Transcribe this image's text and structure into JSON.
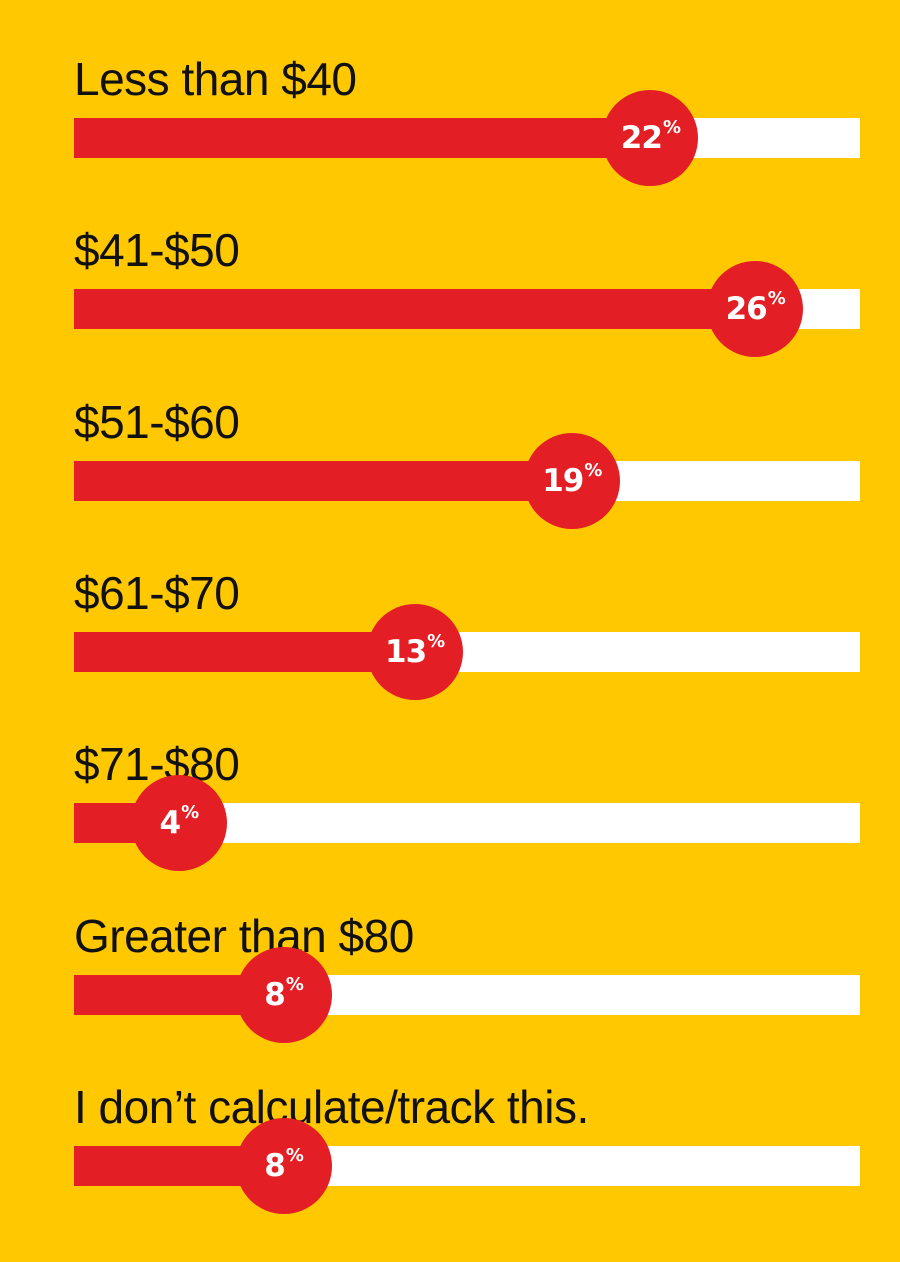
{
  "colors": {
    "background": "#FFC800",
    "bar_fill": "#E31E24",
    "track": "#FFFFFF",
    "label_text": "#111111",
    "bubble_text": "#FFFFFF"
  },
  "chart_data": {
    "type": "bar",
    "orientation": "horizontal",
    "xlim": [
      0,
      30
    ],
    "grid": false,
    "categories": [
      "Less than $40",
      "$41-$50",
      "$51-$60",
      "$61-$70",
      "$71-$80",
      "Greater than $80",
      "I don’t calculate/track this."
    ],
    "values": [
      22,
      26,
      19,
      13,
      4,
      8,
      8
    ],
    "data_labels": [
      "22",
      "26",
      "19",
      "13",
      "4",
      "8",
      "8"
    ],
    "value_suffix": "%"
  }
}
